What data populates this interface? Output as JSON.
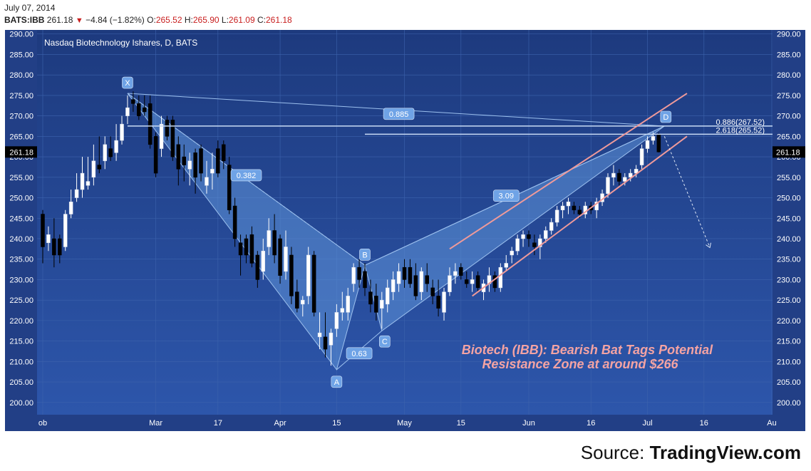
{
  "header": {
    "date": "July 07, 2014",
    "symbol": "BATS:IBB",
    "last": "261.18",
    "change_arrow": "▼",
    "change": "−4.84 (−1.82%)",
    "open_label": "O:",
    "open": "265.52",
    "high_label": "H:",
    "high": "265.90",
    "low_label": "L:",
    "low": "261.09",
    "close_label": "C:",
    "close": "261.18"
  },
  "chart_data": {
    "type": "candlestick",
    "title": "Nasdaq Biotechnology Ishares, D, BATS",
    "annotation_title": "Biotech (IBB): Bearish Bat Tags Potential",
    "annotation_subtitle": "Resistance Zone at around $266",
    "current_price_label": "261.18",
    "ylim": [
      197,
      291
    ],
    "y_ticks": [
      "200.00",
      "205.00",
      "210.00",
      "215.00",
      "220.00",
      "225.00",
      "230.00",
      "235.00",
      "240.00",
      "245.00",
      "250.00",
      "255.00",
      "260.00",
      "265.00",
      "270.00",
      "275.00",
      "280.00",
      "285.00",
      "290.00"
    ],
    "x_ticks": [
      {
        "label": "ob",
        "day": 0
      },
      {
        "label": "Mar",
        "day": 20
      },
      {
        "label": "17",
        "day": 31
      },
      {
        "label": "Apr",
        "day": 42
      },
      {
        "label": "15",
        "day": 52
      },
      {
        "label": "May",
        "day": 64
      },
      {
        "label": "15",
        "day": 74
      },
      {
        "label": "Jun",
        "day": 86
      },
      {
        "label": "16",
        "day": 97
      },
      {
        "label": "Jul",
        "day": 107
      },
      {
        "label": "16",
        "day": 117
      },
      {
        "label": "Au",
        "day": 129
      }
    ],
    "pattern_points": [
      {
        "label": "X",
        "day": 15,
        "price": 275.5
      },
      {
        "label": "A",
        "day": 52,
        "price": 208
      },
      {
        "label": "B",
        "day": 57,
        "price": 233.5
      },
      {
        "label": "C",
        "day": 60,
        "price": 217.5
      },
      {
        "label": "D",
        "day": 110,
        "price": 267.5
      }
    ],
    "pattern_ratios": [
      {
        "label": "0.885",
        "day": 63,
        "price": 270.5
      },
      {
        "label": "0.382",
        "day": 36,
        "price": 255.5
      },
      {
        "label": "0.63",
        "day": 56,
        "price": 212
      },
      {
        "label": "3.09",
        "day": 82,
        "price": 250.5
      }
    ],
    "levels": [
      {
        "label": "0.886(267.52)",
        "price": 267.52,
        "start_day": 15
      },
      {
        "label": "2.618(265.52)",
        "price": 265.52,
        "start_day": 57
      }
    ],
    "channel": [
      {
        "from": {
          "day": 72,
          "price": 237.5
        },
        "to": {
          "day": 114,
          "price": 275.5
        }
      },
      {
        "from": {
          "day": 76,
          "price": 226
        },
        "to": {
          "day": 114,
          "price": 265
        }
      }
    ],
    "projection": {
      "from": {
        "day": 110,
        "price": 265
      },
      "to": {
        "day": 118,
        "price": 238
      }
    },
    "candles": [
      {
        "o": 246,
        "h": 247,
        "l": 234,
        "c": 238
      },
      {
        "o": 239,
        "h": 243,
        "l": 237,
        "c": 241
      },
      {
        "o": 240,
        "h": 245,
        "l": 233,
        "c": 236
      },
      {
        "o": 240,
        "h": 241,
        "l": 234,
        "c": 236
      },
      {
        "o": 238,
        "h": 247,
        "l": 237,
        "c": 246
      },
      {
        "o": 246,
        "h": 252,
        "l": 245,
        "c": 249
      },
      {
        "o": 250,
        "h": 256,
        "l": 249,
        "c": 252
      },
      {
        "o": 252,
        "h": 260,
        "l": 250,
        "c": 256
      },
      {
        "o": 253,
        "h": 260,
        "l": 252,
        "c": 254
      },
      {
        "o": 255,
        "h": 263,
        "l": 253,
        "c": 259
      },
      {
        "o": 258,
        "h": 265,
        "l": 256,
        "c": 257
      },
      {
        "o": 259,
        "h": 265,
        "l": 257,
        "c": 263
      },
      {
        "o": 262,
        "h": 265,
        "l": 259,
        "c": 260
      },
      {
        "o": 261,
        "h": 268,
        "l": 259,
        "c": 264
      },
      {
        "o": 264,
        "h": 270,
        "l": 263,
        "c": 268
      },
      {
        "o": 270,
        "h": 275,
        "l": 268,
        "c": 272
      },
      {
        "o": 274,
        "h": 276,
        "l": 271,
        "c": 273
      },
      {
        "o": 273,
        "h": 275,
        "l": 269,
        "c": 270
      },
      {
        "o": 272,
        "h": 275,
        "l": 270,
        "c": 271
      },
      {
        "o": 273,
        "h": 275,
        "l": 262,
        "c": 263
      },
      {
        "o": 265,
        "h": 266,
        "l": 255,
        "c": 256
      },
      {
        "o": 262,
        "h": 270,
        "l": 260,
        "c": 268
      },
      {
        "o": 269,
        "h": 270,
        "l": 264,
        "c": 265
      },
      {
        "o": 269,
        "h": 270,
        "l": 259,
        "c": 260
      },
      {
        "o": 263,
        "h": 265,
        "l": 253,
        "c": 257
      },
      {
        "o": 260,
        "h": 263,
        "l": 254,
        "c": 258
      },
      {
        "o": 257,
        "h": 261,
        "l": 253,
        "c": 259
      },
      {
        "o": 261,
        "h": 262,
        "l": 251,
        "c": 255
      },
      {
        "o": 262,
        "h": 263,
        "l": 254,
        "c": 256
      },
      {
        "o": 253,
        "h": 259,
        "l": 251,
        "c": 255
      },
      {
        "o": 256,
        "h": 261,
        "l": 252,
        "c": 257
      },
      {
        "o": 262,
        "h": 264,
        "l": 255,
        "c": 256
      },
      {
        "o": 263,
        "h": 264,
        "l": 257,
        "c": 259
      },
      {
        "o": 258,
        "h": 260,
        "l": 246,
        "c": 247
      },
      {
        "o": 248,
        "h": 250,
        "l": 238,
        "c": 240
      },
      {
        "o": 239,
        "h": 241,
        "l": 231,
        "c": 236
      },
      {
        "o": 240,
        "h": 241,
        "l": 234,
        "c": 236
      },
      {
        "o": 241,
        "h": 243,
        "l": 233,
        "c": 234
      },
      {
        "o": 236,
        "h": 237,
        "l": 228,
        "c": 230
      },
      {
        "o": 232,
        "h": 240,
        "l": 230,
        "c": 237
      },
      {
        "o": 238,
        "h": 245,
        "l": 236,
        "c": 242
      },
      {
        "o": 242,
        "h": 246,
        "l": 234,
        "c": 236
      },
      {
        "o": 240,
        "h": 241,
        "l": 229,
        "c": 231
      },
      {
        "o": 232,
        "h": 242,
        "l": 230,
        "c": 238
      },
      {
        "o": 236,
        "h": 238,
        "l": 224,
        "c": 226
      },
      {
        "o": 227,
        "h": 230,
        "l": 222,
        "c": 223
      },
      {
        "o": 224,
        "h": 226,
        "l": 221,
        "c": 225
      },
      {
        "o": 226,
        "h": 238,
        "l": 224,
        "c": 236
      },
      {
        "o": 236,
        "h": 237,
        "l": 221,
        "c": 222
      },
      {
        "o": 216,
        "h": 222,
        "l": 213,
        "c": 217
      },
      {
        "o": 216,
        "h": 222,
        "l": 211,
        "c": 213
      },
      {
        "o": 214,
        "h": 218,
        "l": 209,
        "c": 217
      },
      {
        "o": 218,
        "h": 224,
        "l": 216,
        "c": 222
      },
      {
        "o": 222,
        "h": 227,
        "l": 220,
        "c": 223
      },
      {
        "o": 222,
        "h": 228,
        "l": 220,
        "c": 226
      },
      {
        "o": 229,
        "h": 234,
        "l": 227,
        "c": 233
      },
      {
        "o": 233,
        "h": 235,
        "l": 228,
        "c": 230
      },
      {
        "o": 232,
        "h": 234,
        "l": 226,
        "c": 228
      },
      {
        "o": 227,
        "h": 230,
        "l": 222,
        "c": 224
      },
      {
        "o": 226,
        "h": 229,
        "l": 220,
        "c": 222
      },
      {
        "o": 223,
        "h": 227,
        "l": 218,
        "c": 225
      },
      {
        "o": 224,
        "h": 230,
        "l": 222,
        "c": 228
      },
      {
        "o": 227,
        "h": 232,
        "l": 225,
        "c": 230
      },
      {
        "o": 229,
        "h": 234,
        "l": 227,
        "c": 232
      },
      {
        "o": 233,
        "h": 235,
        "l": 228,
        "c": 230
      },
      {
        "o": 233,
        "h": 235,
        "l": 228,
        "c": 229
      },
      {
        "o": 231,
        "h": 234,
        "l": 225,
        "c": 226
      },
      {
        "o": 227,
        "h": 233,
        "l": 225,
        "c": 232
      },
      {
        "o": 231,
        "h": 234,
        "l": 227,
        "c": 229
      },
      {
        "o": 228,
        "h": 230,
        "l": 224,
        "c": 226
      },
      {
        "o": 226,
        "h": 230,
        "l": 221,
        "c": 223
      },
      {
        "o": 222,
        "h": 228,
        "l": 220,
        "c": 227
      },
      {
        "o": 227,
        "h": 233,
        "l": 226,
        "c": 231
      },
      {
        "o": 231,
        "h": 234,
        "l": 229,
        "c": 232
      },
      {
        "o": 233,
        "h": 234,
        "l": 230,
        "c": 231
      },
      {
        "o": 230,
        "h": 232,
        "l": 228,
        "c": 229
      },
      {
        "o": 229,
        "h": 232,
        "l": 227,
        "c": 230
      },
      {
        "o": 231,
        "h": 232,
        "l": 227,
        "c": 228
      },
      {
        "o": 227,
        "h": 230,
        "l": 225,
        "c": 229
      },
      {
        "o": 229,
        "h": 233,
        "l": 227,
        "c": 231
      },
      {
        "o": 231,
        "h": 232,
        "l": 227,
        "c": 228
      },
      {
        "o": 228,
        "h": 234,
        "l": 227,
        "c": 233
      },
      {
        "o": 233,
        "h": 236,
        "l": 232,
        "c": 234
      },
      {
        "o": 236,
        "h": 238,
        "l": 234,
        "c": 237
      },
      {
        "o": 237,
        "h": 241,
        "l": 236,
        "c": 240
      },
      {
        "o": 240,
        "h": 242,
        "l": 238,
        "c": 241
      },
      {
        "o": 241,
        "h": 242,
        "l": 238,
        "c": 240
      },
      {
        "o": 239,
        "h": 241,
        "l": 236,
        "c": 238
      },
      {
        "o": 238,
        "h": 241,
        "l": 235,
        "c": 240
      },
      {
        "o": 240,
        "h": 243,
        "l": 239,
        "c": 242
      },
      {
        "o": 242,
        "h": 245,
        "l": 241,
        "c": 244
      },
      {
        "o": 244,
        "h": 248,
        "l": 243,
        "c": 247
      },
      {
        "o": 247,
        "h": 249,
        "l": 245,
        "c": 248
      },
      {
        "o": 248,
        "h": 250,
        "l": 246,
        "c": 249
      },
      {
        "o": 248,
        "h": 249,
        "l": 246,
        "c": 247
      },
      {
        "o": 247,
        "h": 248,
        "l": 245,
        "c": 246
      },
      {
        "o": 246,
        "h": 249,
        "l": 245,
        "c": 248
      },
      {
        "o": 248,
        "h": 249,
        "l": 246,
        "c": 247
      },
      {
        "o": 247,
        "h": 250,
        "l": 245,
        "c": 249
      },
      {
        "o": 249,
        "h": 252,
        "l": 248,
        "c": 251
      },
      {
        "o": 251,
        "h": 256,
        "l": 250,
        "c": 255
      },
      {
        "o": 255,
        "h": 258,
        "l": 253,
        "c": 256
      },
      {
        "o": 256,
        "h": 257,
        "l": 253,
        "c": 254
      },
      {
        "o": 254,
        "h": 256,
        "l": 253,
        "c": 255
      },
      {
        "o": 255,
        "h": 257,
        "l": 254,
        "c": 256
      },
      {
        "o": 256,
        "h": 258,
        "l": 255,
        "c": 257
      },
      {
        "o": 258,
        "h": 263,
        "l": 257,
        "c": 262
      },
      {
        "o": 262,
        "h": 265,
        "l": 261,
        "c": 264
      },
      {
        "o": 264,
        "h": 266,
        "l": 263,
        "c": 265
      },
      {
        "o": 265.52,
        "h": 265.9,
        "l": 261.09,
        "c": 261.18
      }
    ]
  },
  "source": {
    "prefix": "Source: ",
    "name": "TradingView.com"
  }
}
